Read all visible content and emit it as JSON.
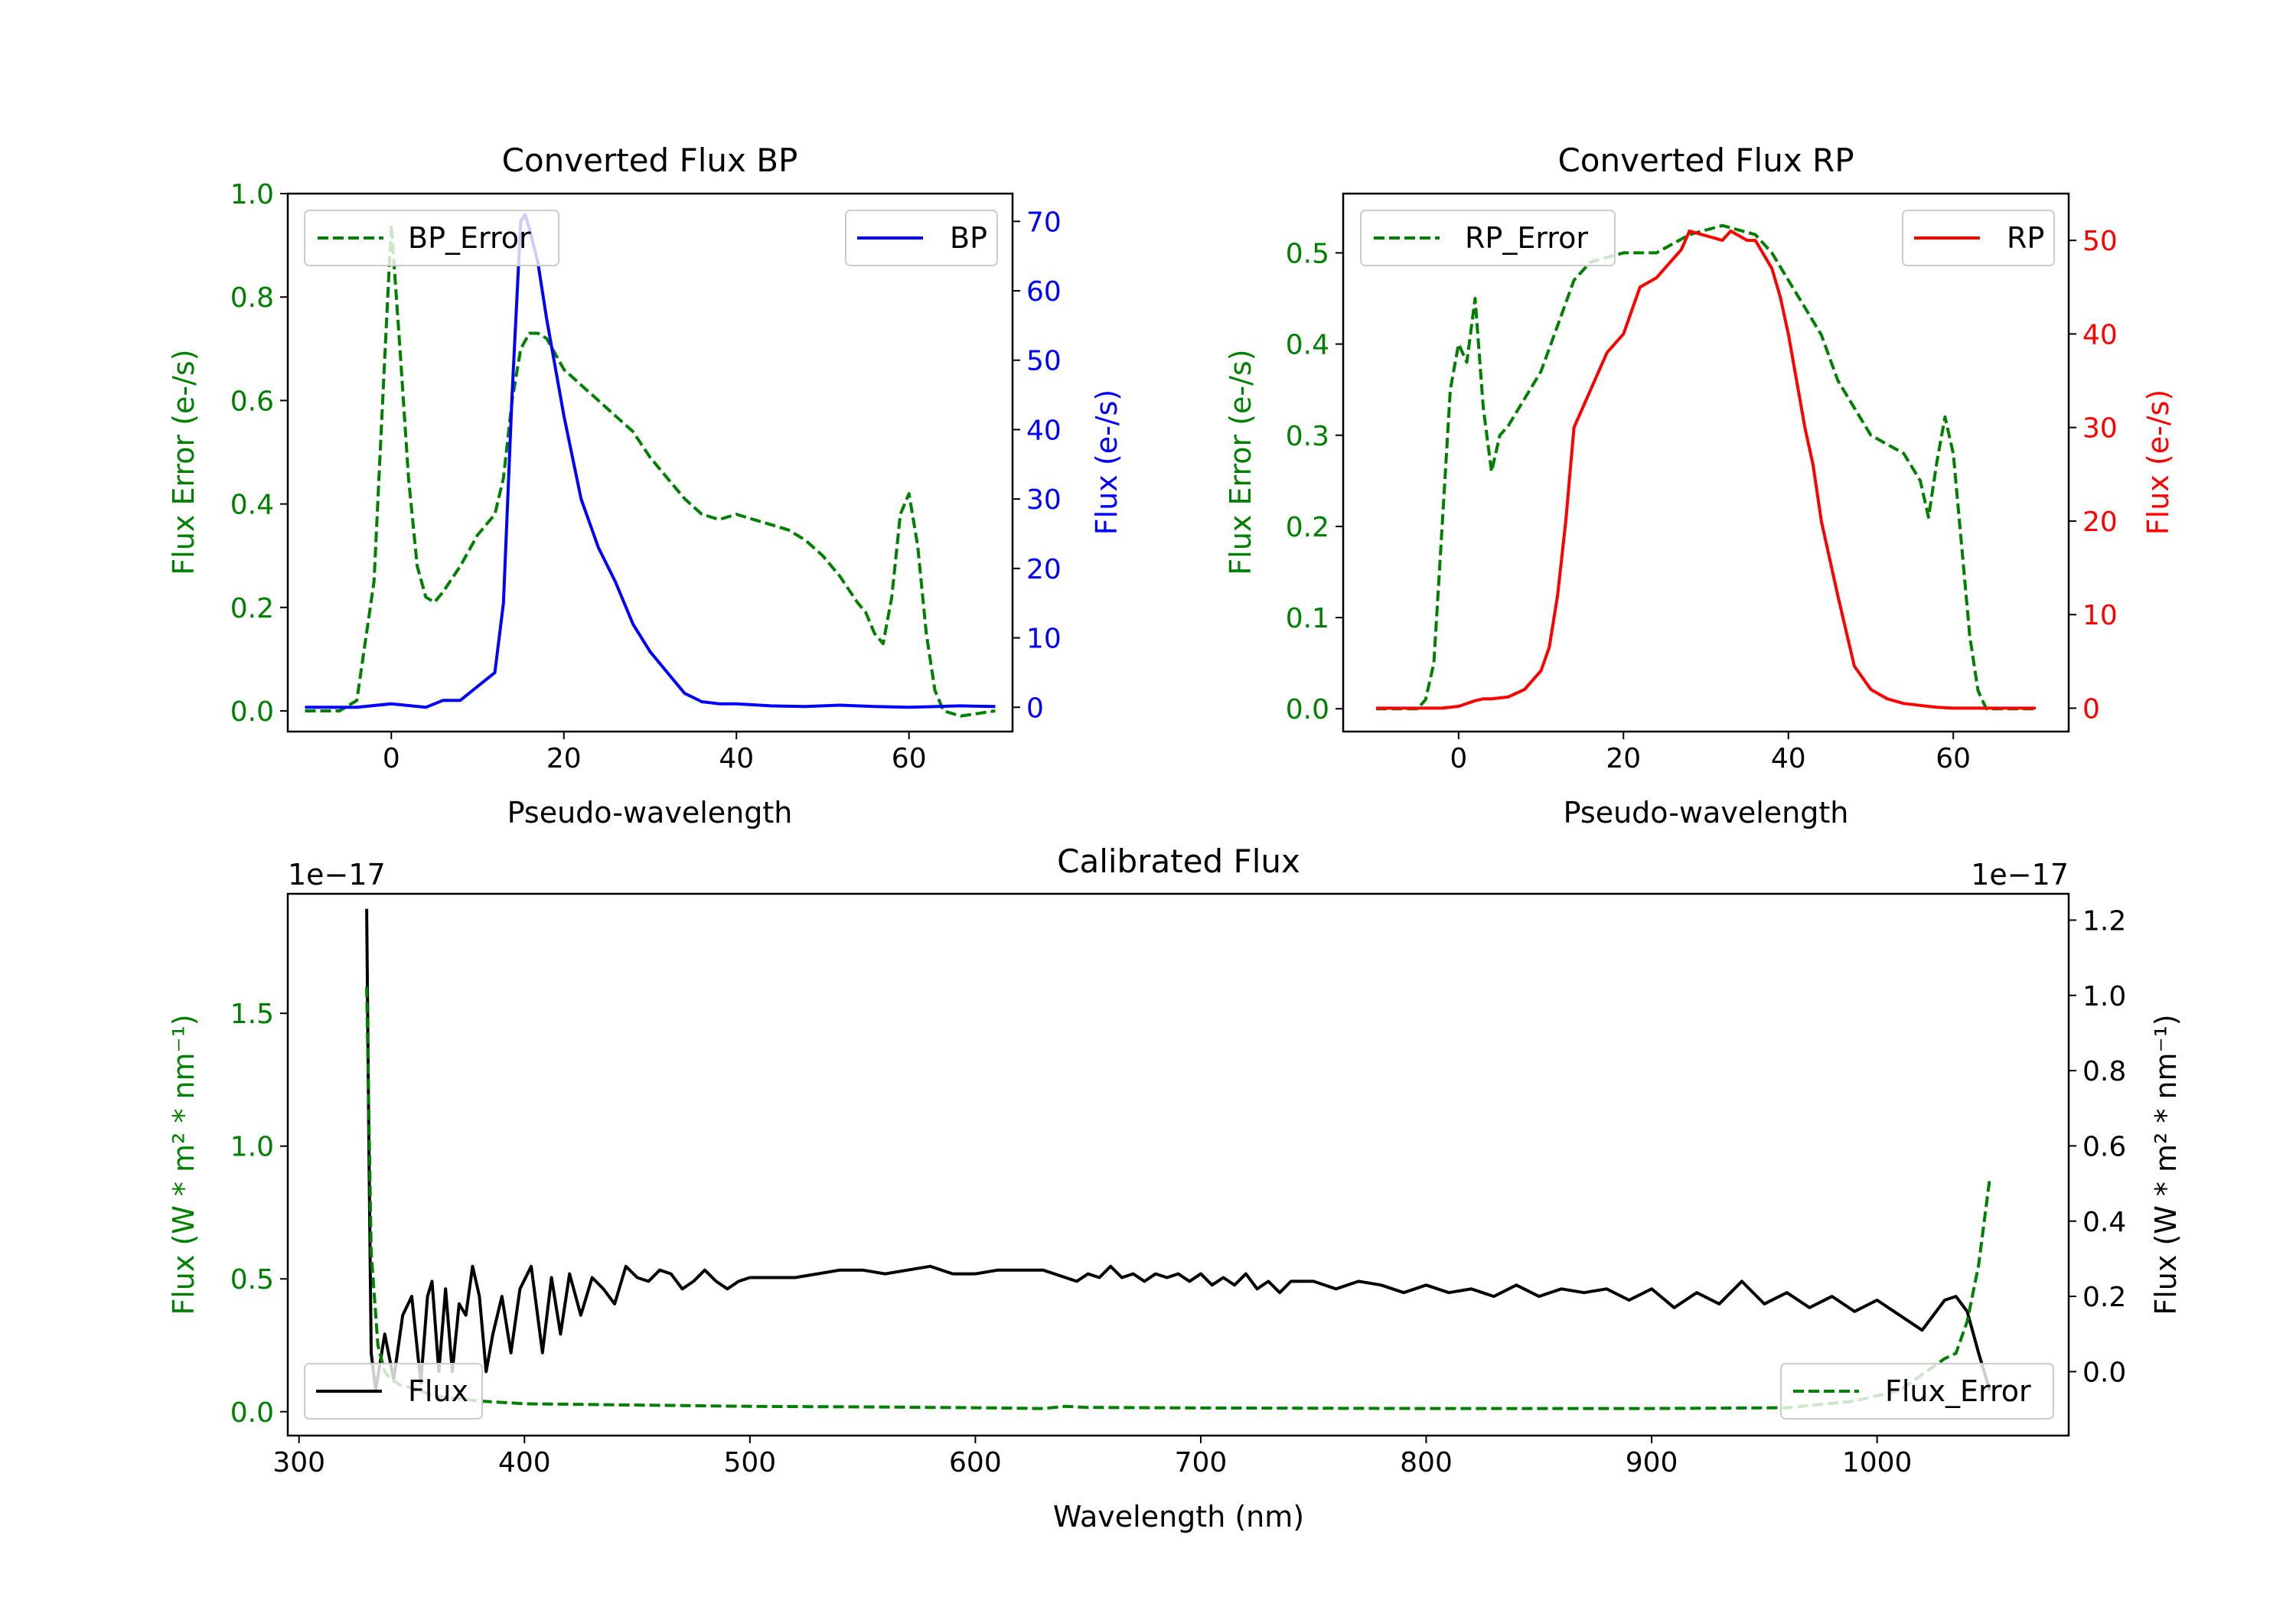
{
  "colors": {
    "green": "#008000",
    "blue": "#0000ff",
    "red": "#ff0000",
    "black": "#000000"
  },
  "chart_data": [
    {
      "type": "line",
      "title": "Converted Flux BP",
      "xlabel": "Pseudo-wavelength",
      "ylabel_left": "Flux Error (e-/s)",
      "ylabel_right": "Flux (e-/s)",
      "xlim": [
        -12,
        72
      ],
      "ylim_left": [
        -0.04,
        1.0
      ],
      "ylim_right": [
        -3.5,
        74
      ],
      "xticks": [
        "0",
        "20",
        "40",
        "60"
      ],
      "yticks_left": [
        "0.0",
        "0.2",
        "0.4",
        "0.6",
        "0.8",
        "1.0"
      ],
      "yticks_right": [
        "0",
        "10",
        "20",
        "30",
        "40",
        "50",
        "60",
        "70"
      ],
      "series": [
        {
          "name": "BP_Error",
          "axis": "left",
          "style": "dashed",
          "color": "green",
          "x": [
            -10,
            -6,
            -4,
            -2,
            -1,
            0,
            1,
            2,
            3,
            4,
            5,
            6,
            8,
            10,
            12,
            13,
            14,
            15,
            16,
            17,
            18,
            19,
            20,
            22,
            24,
            26,
            28,
            30,
            32,
            34,
            36,
            38,
            40,
            42,
            44,
            46,
            48,
            50,
            52,
            54,
            55,
            56,
            57,
            58,
            59,
            60,
            61,
            62,
            63,
            64,
            66,
            70
          ],
          "values": [
            0.0,
            0.0,
            0.02,
            0.25,
            0.6,
            0.94,
            0.7,
            0.45,
            0.28,
            0.22,
            0.21,
            0.23,
            0.28,
            0.34,
            0.38,
            0.45,
            0.6,
            0.7,
            0.73,
            0.73,
            0.72,
            0.69,
            0.66,
            0.63,
            0.6,
            0.57,
            0.54,
            0.49,
            0.45,
            0.41,
            0.38,
            0.37,
            0.38,
            0.37,
            0.36,
            0.35,
            0.33,
            0.3,
            0.26,
            0.21,
            0.19,
            0.15,
            0.13,
            0.22,
            0.38,
            0.42,
            0.32,
            0.15,
            0.04,
            0.0,
            -0.01,
            0.0
          ]
        },
        {
          "name": "BP",
          "axis": "right",
          "style": "solid",
          "color": "blue",
          "x": [
            -10,
            -4,
            0,
            4,
            6,
            8,
            10,
            12,
            13,
            14,
            15,
            15.5,
            16,
            17,
            18,
            20,
            22,
            24,
            26,
            28,
            30,
            32,
            34,
            36,
            38,
            40,
            44,
            48,
            52,
            56,
            60,
            66,
            70
          ],
          "values": [
            0,
            0,
            0.5,
            0,
            1,
            1,
            3,
            5,
            15,
            45,
            70,
            71,
            69,
            64,
            56,
            42,
            30,
            23,
            18,
            12,
            8,
            5,
            2,
            0.8,
            0.5,
            0.5,
            0.2,
            0.1,
            0.3,
            0.1,
            0,
            0.2,
            0.1
          ]
        }
      ],
      "legend": [
        {
          "label": "BP_Error",
          "position": "upper-left"
        },
        {
          "label": "BP",
          "position": "upper-right"
        }
      ]
    },
    {
      "type": "line",
      "title": "Converted Flux RP",
      "xlabel": "Pseudo-wavelength",
      "ylabel_left": "Flux Error (e-/s)",
      "ylabel_right": "Flux (e-/s)",
      "xlim": [
        -14,
        74
      ],
      "ylim_left": [
        -0.025,
        0.565
      ],
      "ylim_right": [
        -2.5,
        55
      ],
      "xticks": [
        "0",
        "20",
        "40",
        "60"
      ],
      "yticks_left": [
        "0.0",
        "0.1",
        "0.2",
        "0.3",
        "0.4",
        "0.5"
      ],
      "yticks_right": [
        "0",
        "10",
        "20",
        "30",
        "40",
        "50"
      ],
      "series": [
        {
          "name": "RP_Error",
          "axis": "left",
          "style": "dashed",
          "color": "green",
          "x": [
            -10,
            -5,
            -4,
            -3,
            -2,
            -1,
            0,
            1,
            2,
            3,
            4,
            5,
            6,
            8,
            10,
            12,
            14,
            16,
            20,
            24,
            28,
            32,
            36,
            38,
            40,
            42,
            44,
            46,
            48,
            50,
            52,
            54,
            56,
            57,
            58,
            59,
            60,
            61,
            62,
            63,
            64,
            66,
            70
          ],
          "values": [
            0.0,
            0.0,
            0.01,
            0.05,
            0.2,
            0.35,
            0.4,
            0.38,
            0.45,
            0.33,
            0.26,
            0.3,
            0.31,
            0.34,
            0.37,
            0.42,
            0.47,
            0.49,
            0.5,
            0.5,
            0.52,
            0.53,
            0.52,
            0.5,
            0.47,
            0.44,
            0.41,
            0.36,
            0.33,
            0.3,
            0.29,
            0.28,
            0.25,
            0.21,
            0.27,
            0.32,
            0.28,
            0.18,
            0.08,
            0.02,
            0.0,
            0.0,
            0.0
          ]
        },
        {
          "name": "RP",
          "axis": "right",
          "style": "solid",
          "color": "red",
          "x": [
            -10,
            -2,
            0,
            2,
            3,
            4,
            6,
            8,
            10,
            11,
            12,
            13,
            14,
            16,
            18,
            20,
            22,
            24,
            26,
            27,
            28,
            30,
            32,
            33,
            34,
            35,
            36,
            38,
            39,
            40,
            41,
            42,
            43,
            44,
            46,
            48,
            50,
            52,
            54,
            56,
            58,
            60,
            64,
            70
          ],
          "values": [
            0,
            0,
            0.2,
            0.8,
            1,
            1,
            1.2,
            2,
            4,
            6.5,
            12,
            20,
            30,
            34,
            38,
            40,
            45,
            46,
            48,
            49,
            51,
            50.5,
            50,
            51,
            50.5,
            50,
            50,
            47,
            44,
            40,
            35,
            30,
            26,
            20,
            12,
            4.5,
            2,
            1,
            0.5,
            0.3,
            0.1,
            0,
            0,
            0
          ]
        }
      ],
      "legend": [
        {
          "label": "RP_Error",
          "position": "upper-left"
        },
        {
          "label": "RP",
          "position": "upper-right"
        }
      ]
    },
    {
      "type": "line",
      "title": "Calibrated Flux",
      "xlabel": "Wavelength (nm)",
      "ylabel_left": "Flux (W * m² * nm⁻¹)",
      "ylabel_right": "Flux (W * m² * nm⁻¹)",
      "offset_left": "1e−17",
      "offset_right": "1e−17",
      "xlim": [
        295,
        1085
      ],
      "ylim_left": [
        -0.09,
        1.95
      ],
      "ylim_right": [
        -0.17,
        1.27
      ],
      "xticks": [
        "300",
        "400",
        "500",
        "600",
        "700",
        "800",
        "900",
        "1000"
      ],
      "yticks_left": [
        "0.0",
        "0.5",
        "1.0",
        "1.5"
      ],
      "yticks_right": [
        "0.0",
        "0.2",
        "0.4",
        "0.6",
        "0.8",
        "1.0",
        "1.2"
      ],
      "series": [
        {
          "name": "Flux",
          "axis": "right",
          "style": "solid",
          "color": "black",
          "x": [
            330,
            331,
            332,
            334,
            338,
            342,
            346,
            350,
            354,
            357,
            359,
            362,
            365,
            368,
            371,
            374,
            377,
            380,
            383,
            386,
            390,
            394,
            398,
            403,
            408,
            412,
            416,
            420,
            425,
            430,
            435,
            440,
            445,
            450,
            455,
            460,
            465,
            470,
            475,
            480,
            485,
            490,
            495,
            500,
            510,
            520,
            530,
            540,
            550,
            560,
            570,
            580,
            590,
            600,
            610,
            620,
            630,
            640,
            645,
            650,
            655,
            660,
            665,
            670,
            675,
            680,
            685,
            690,
            695,
            700,
            705,
            710,
            715,
            720,
            725,
            730,
            735,
            740,
            750,
            760,
            770,
            780,
            790,
            800,
            810,
            820,
            830,
            840,
            850,
            860,
            870,
            880,
            890,
            900,
            910,
            920,
            930,
            940,
            950,
            960,
            970,
            980,
            990,
            1000,
            1010,
            1020,
            1030,
            1035,
            1040,
            1045,
            1050
          ],
          "values": [
            1.23,
            0.6,
            0.05,
            -0.05,
            0.1,
            -0.02,
            0.15,
            0.2,
            -0.03,
            0.2,
            0.24,
            0.0,
            0.22,
            0.0,
            0.18,
            0.15,
            0.28,
            0.2,
            0.0,
            0.1,
            0.2,
            0.05,
            0.22,
            0.28,
            0.05,
            0.25,
            0.1,
            0.26,
            0.15,
            0.25,
            0.22,
            0.18,
            0.28,
            0.25,
            0.24,
            0.27,
            0.26,
            0.22,
            0.24,
            0.27,
            0.24,
            0.22,
            0.24,
            0.25,
            0.25,
            0.25,
            0.26,
            0.27,
            0.27,
            0.26,
            0.27,
            0.28,
            0.26,
            0.26,
            0.27,
            0.27,
            0.27,
            0.25,
            0.24,
            0.26,
            0.25,
            0.28,
            0.25,
            0.26,
            0.24,
            0.26,
            0.25,
            0.26,
            0.24,
            0.26,
            0.23,
            0.25,
            0.23,
            0.26,
            0.22,
            0.24,
            0.21,
            0.24,
            0.24,
            0.22,
            0.24,
            0.23,
            0.21,
            0.23,
            0.21,
            0.22,
            0.2,
            0.23,
            0.2,
            0.22,
            0.21,
            0.22,
            0.19,
            0.22,
            0.17,
            0.21,
            0.18,
            0.24,
            0.18,
            0.21,
            0.17,
            0.2,
            0.16,
            0.19,
            0.15,
            0.11,
            0.19,
            0.2,
            0.16,
            0.05,
            -0.05
          ]
        },
        {
          "name": "Flux_Error",
          "axis": "left",
          "style": "dashed",
          "color": "green",
          "x": [
            330,
            332,
            335,
            338,
            341,
            345,
            350,
            360,
            370,
            380,
            400,
            450,
            500,
            550,
            600,
            630,
            640,
            650,
            700,
            800,
            900,
            960,
            990,
            1000,
            1010,
            1020,
            1030,
            1035,
            1040,
            1045,
            1050
          ],
          "values": [
            1.6,
            0.6,
            0.25,
            0.15,
            0.12,
            0.1,
            0.09,
            0.06,
            0.05,
            0.04,
            0.03,
            0.025,
            0.02,
            0.018,
            0.015,
            0.012,
            0.02,
            0.016,
            0.014,
            0.012,
            0.012,
            0.015,
            0.04,
            0.06,
            0.08,
            0.14,
            0.2,
            0.22,
            0.34,
            0.55,
            0.88
          ]
        }
      ],
      "legend": [
        {
          "label": "Flux",
          "position": "lower-left"
        },
        {
          "label": "Flux_Error",
          "position": "lower-right"
        }
      ]
    }
  ]
}
